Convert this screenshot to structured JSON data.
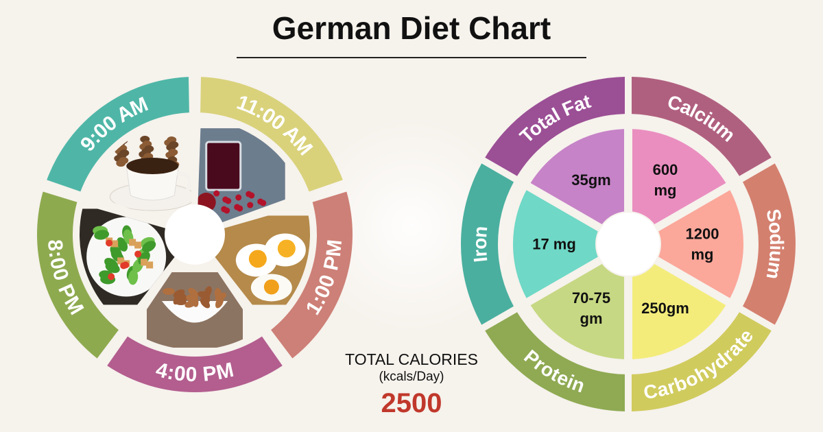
{
  "title": "German Diet Chart",
  "meal_wheel": {
    "segments": [
      {
        "time": "9:00 AM",
        "color": "#4fb6a7",
        "food": "coffee"
      },
      {
        "time": "11:00 AM",
        "color": "#d9d27b",
        "food": "pomegranate-juice"
      },
      {
        "time": "1:00 PM",
        "color": "#cd8077",
        "food": "boiled-eggs"
      },
      {
        "time": "4:00 PM",
        "color": "#b35e8f",
        "food": "almonds"
      },
      {
        "time": "8:00 PM",
        "color": "#8eaa4f",
        "food": "salad"
      }
    ]
  },
  "calories": {
    "label": "TOTAL CALORIES",
    "unit": "(kcals/Day)",
    "value": "2500",
    "value_color": "#c0382b"
  },
  "nutrient_wheel": {
    "segments": [
      {
        "name": "Total Fat",
        "value": [
          "35gm"
        ],
        "outer_color": "#9b4f95",
        "inner_color": "#c683c7"
      },
      {
        "name": "Calcium",
        "value": [
          "600",
          "mg"
        ],
        "outer_color": "#b0607f",
        "inner_color": "#ea8ec0"
      },
      {
        "name": "Sodium",
        "value": [
          "1200",
          "mg"
        ],
        "outer_color": "#d4806f",
        "inner_color": "#fba79a"
      },
      {
        "name": "Carbohydrate",
        "value": [
          "250gm"
        ],
        "outer_color": "#d0cb5d",
        "inner_color": "#f3ec7b"
      },
      {
        "name": "Protein",
        "value": [
          "70-75",
          "gm"
        ],
        "outer_color": "#8faa53",
        "inner_color": "#c6d883"
      },
      {
        "name": "Iron",
        "value": [
          "17 mg"
        ],
        "outer_color": "#4aaf9f",
        "inner_color": "#6fd8c6"
      }
    ]
  }
}
